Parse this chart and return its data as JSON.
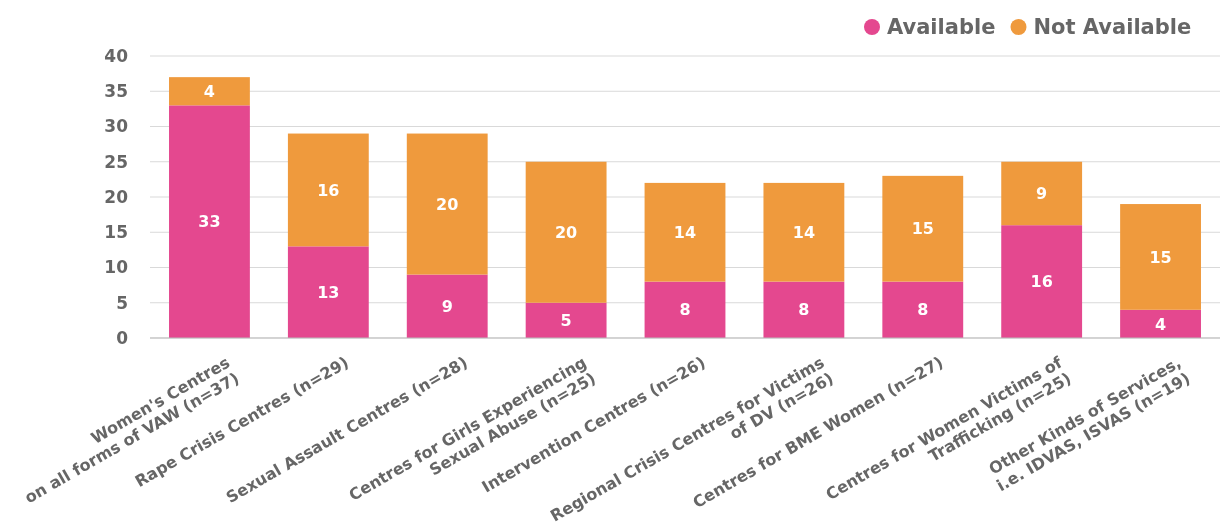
{
  "chart_data": {
    "type": "bar",
    "stacked": true,
    "data_labels": true,
    "grid": "y",
    "legend": "top right",
    "categories": [
      "Women's Centres\non all forms of VAW (n=37)",
      "Rape Crisis Centres (n=29)",
      "Sexual Assault Centres (n=28)",
      "Centres for Girls Experiencing\nSexual Abuse (n=25)",
      "Intervention Centres (n=26)",
      "Regional Crisis Centres for Victims\nof DV (n=26)",
      "Centres for BME Women (n=27)",
      "Centres for Women Victims of\nTrafficking (n=25)",
      "Other Kinds of Services,\ni.e. IDVAS, ISVAS (n=19)"
    ],
    "series": [
      {
        "name": "Available",
        "color": "#e4488f",
        "values": [
          33,
          13,
          9,
          5,
          8,
          8,
          8,
          16,
          4
        ]
      },
      {
        "name": "Not Available",
        "color": "#ef9a3d",
        "values": [
          4,
          16,
          20,
          20,
          14,
          14,
          15,
          9,
          15
        ]
      }
    ],
    "ylim": [
      0,
      40
    ],
    "yticks": [
      0,
      5,
      10,
      15,
      20,
      25,
      30,
      35,
      40
    ]
  }
}
